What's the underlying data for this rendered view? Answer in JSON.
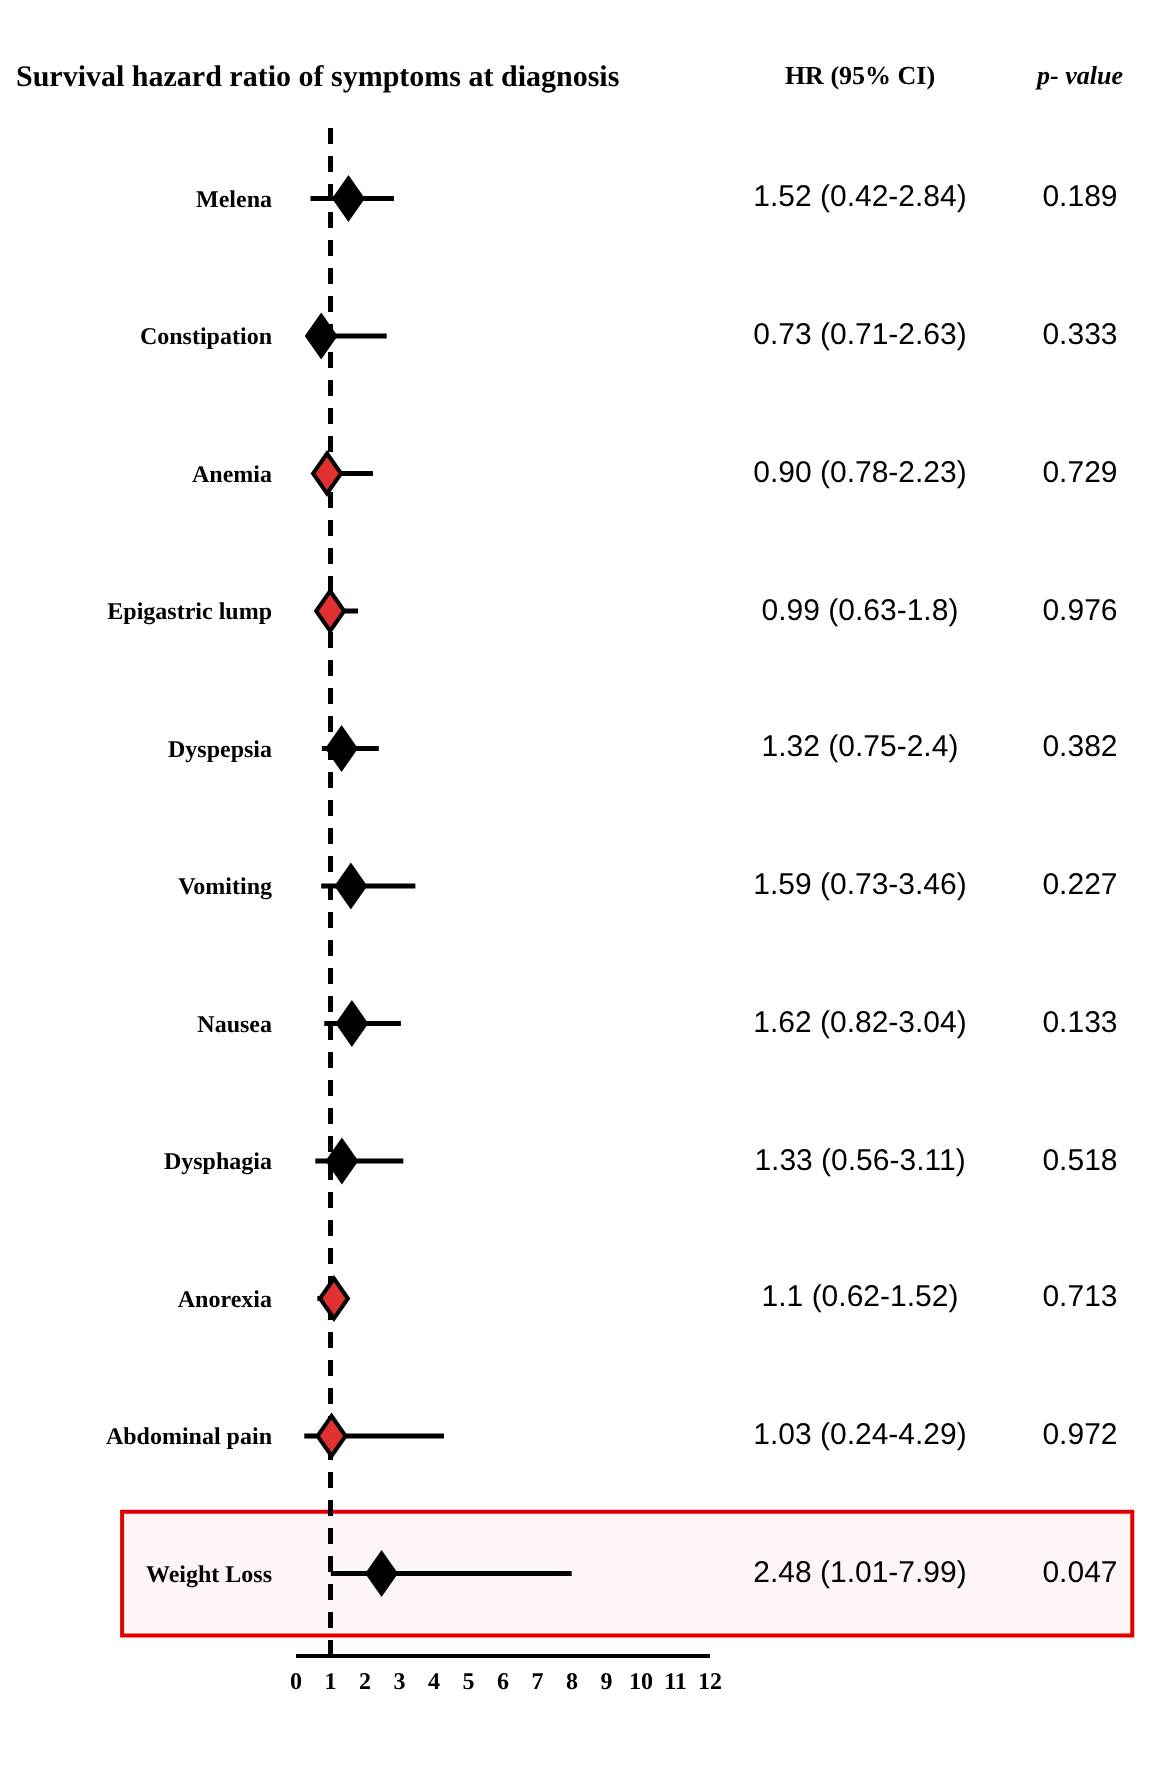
{
  "chart_data": {
    "type": "scatter",
    "title": "Survival hazard ratio of symptoms at diagnosis",
    "categories": [
      "Melena",
      "Constipation",
      "Anemia",
      "Epigastric lump",
      "Dyspepsia",
      "Vomiting",
      "Nausea",
      "Dysphagia",
      "Anorexia",
      "Abdominal pain",
      "Weight Loss"
    ],
    "values": [
      1.52,
      0.73,
      0.9,
      0.99,
      1.32,
      1.59,
      1.62,
      1.33,
      1.1,
      1.03,
      2.48
    ],
    "errors": [
      [
        0.42,
        2.84
      ],
      [
        0.71,
        2.63
      ],
      [
        0.78,
        2.23
      ],
      [
        0.63,
        1.8
      ],
      [
        0.75,
        2.4
      ],
      [
        0.73,
        3.46
      ],
      [
        0.82,
        3.04
      ],
      [
        0.56,
        3.11
      ],
      [
        0.62,
        1.52
      ],
      [
        0.24,
        4.29
      ],
      [
        1.01,
        7.99
      ]
    ],
    "colors": [
      "#000000",
      "#000000",
      "#e03030",
      "#e03030",
      "#000000",
      "#000000",
      "#000000",
      "#000000",
      "#e03030",
      "#e03030",
      "#000000"
    ],
    "value_labels": [
      "1.52 (0.42-2.84)",
      "0.73 (0.71-2.63)",
      "0.90 (0.78-2.23)",
      "0.99 (0.63-1.8)",
      "1.32 (0.75-2.4)",
      "1.59 (0.73-3.46)",
      "1.62 (0.82-3.04)",
      "1.33 (0.56-3.11)",
      "1.1 (0.62-1.52)",
      "1.03 (0.24-4.29)",
      "2.48 (1.01-7.99)"
    ],
    "annotations": [
      "HR (95% CI)",
      "p- value",
      "0.189",
      "0.333",
      "0.729",
      "0.976",
      "0.382",
      "0.227",
      "0.133",
      "0.518",
      "0.713",
      "0.972",
      "0.047"
    ],
    "xlim": [
      0,
      12
    ],
    "xticks": [
      0,
      1,
      2,
      3,
      4,
      5,
      6,
      7,
      8,
      9,
      10,
      11,
      12
    ],
    "bands": [
      {
        "axis": "y",
        "from": "Weight Loss",
        "to": "Weight Loss",
        "color": "#e00000"
      }
    ],
    "ref_lines": [
      {
        "axis": "x",
        "value": 1,
        "color": "#000000",
        "line_style": "dashed"
      }
    ],
    "orientation": "horizontal",
    "marker": "diamond",
    "grid": false,
    "legend": false
  }
}
